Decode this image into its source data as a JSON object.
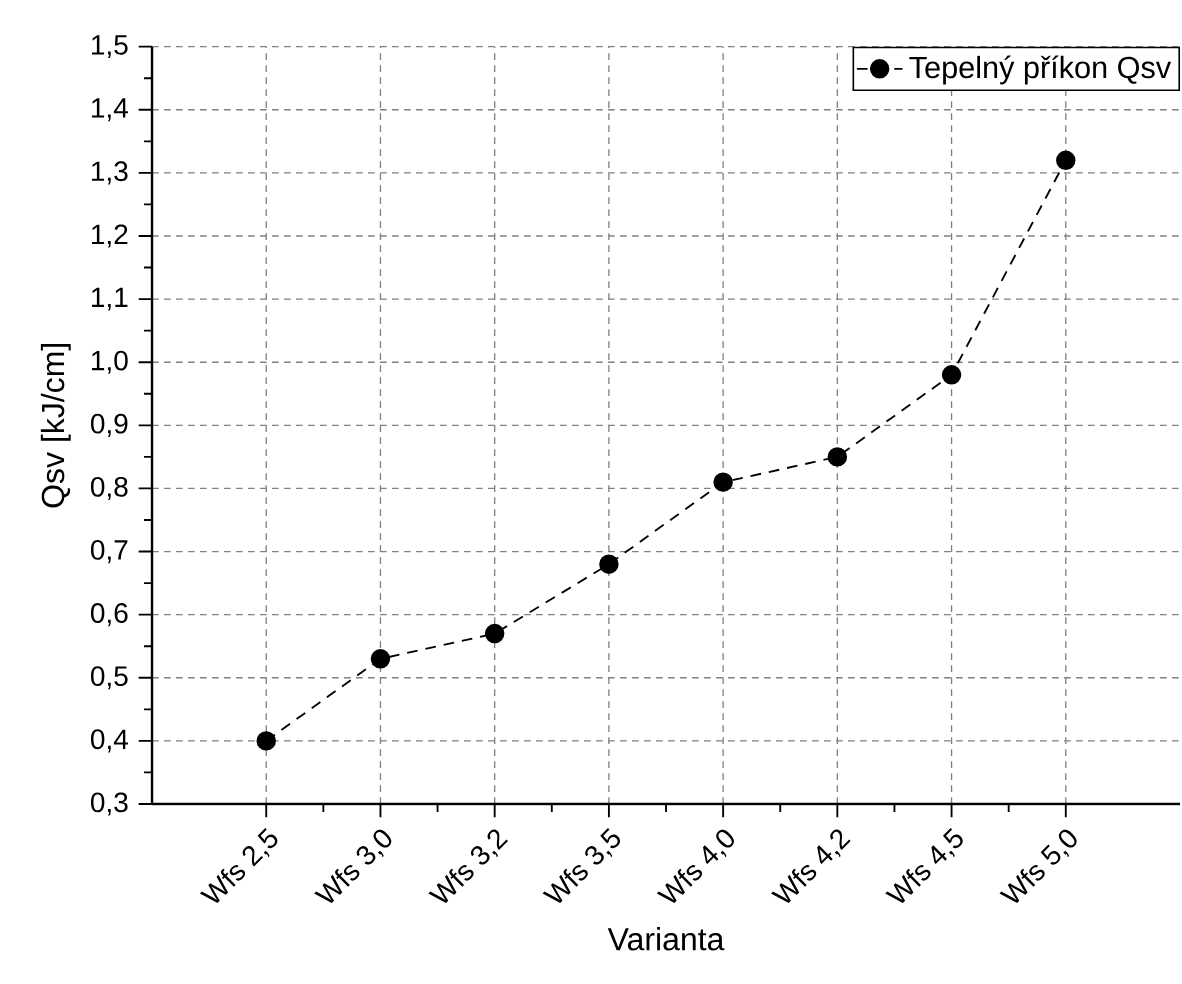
{
  "chart_data": {
    "type": "line",
    "xlabel": "Varianta",
    "ylabel": "Qsv [kJ/cm]",
    "categories": [
      "Wfs 2,5",
      "Wfs 3,0",
      "Wfs 3,2",
      "Wfs 3,5",
      "Wfs 4,0",
      "Wfs 4,2",
      "Wfs 4,5",
      "Wfs 5,0"
    ],
    "series": [
      {
        "name": "Tepelný příkon Qsv",
        "color": "#000000",
        "values": [
          0.4,
          0.53,
          0.57,
          0.68,
          0.81,
          0.85,
          0.98,
          1.32
        ]
      }
    ],
    "ylim": [
      0.3,
      1.5
    ],
    "yticks": [
      {
        "value": 0.3,
        "label": "0,3"
      },
      {
        "value": 0.4,
        "label": "0,4"
      },
      {
        "value": 0.5,
        "label": "0,5"
      },
      {
        "value": 0.6,
        "label": "0,6"
      },
      {
        "value": 0.7,
        "label": "0,7"
      },
      {
        "value": 0.8,
        "label": "0,8"
      },
      {
        "value": 0.9,
        "label": "0,9"
      },
      {
        "value": 1.0,
        "label": "1,0"
      },
      {
        "value": 1.1,
        "label": "1,1"
      },
      {
        "value": 1.2,
        "label": "1,2"
      },
      {
        "value": 1.3,
        "label": "1,3"
      },
      {
        "value": 1.4,
        "label": "1,4"
      },
      {
        "value": 1.5,
        "label": "1,5"
      }
    ],
    "grid": true,
    "legend": "top right",
    "marker": "circle",
    "line_style": "dashed"
  }
}
